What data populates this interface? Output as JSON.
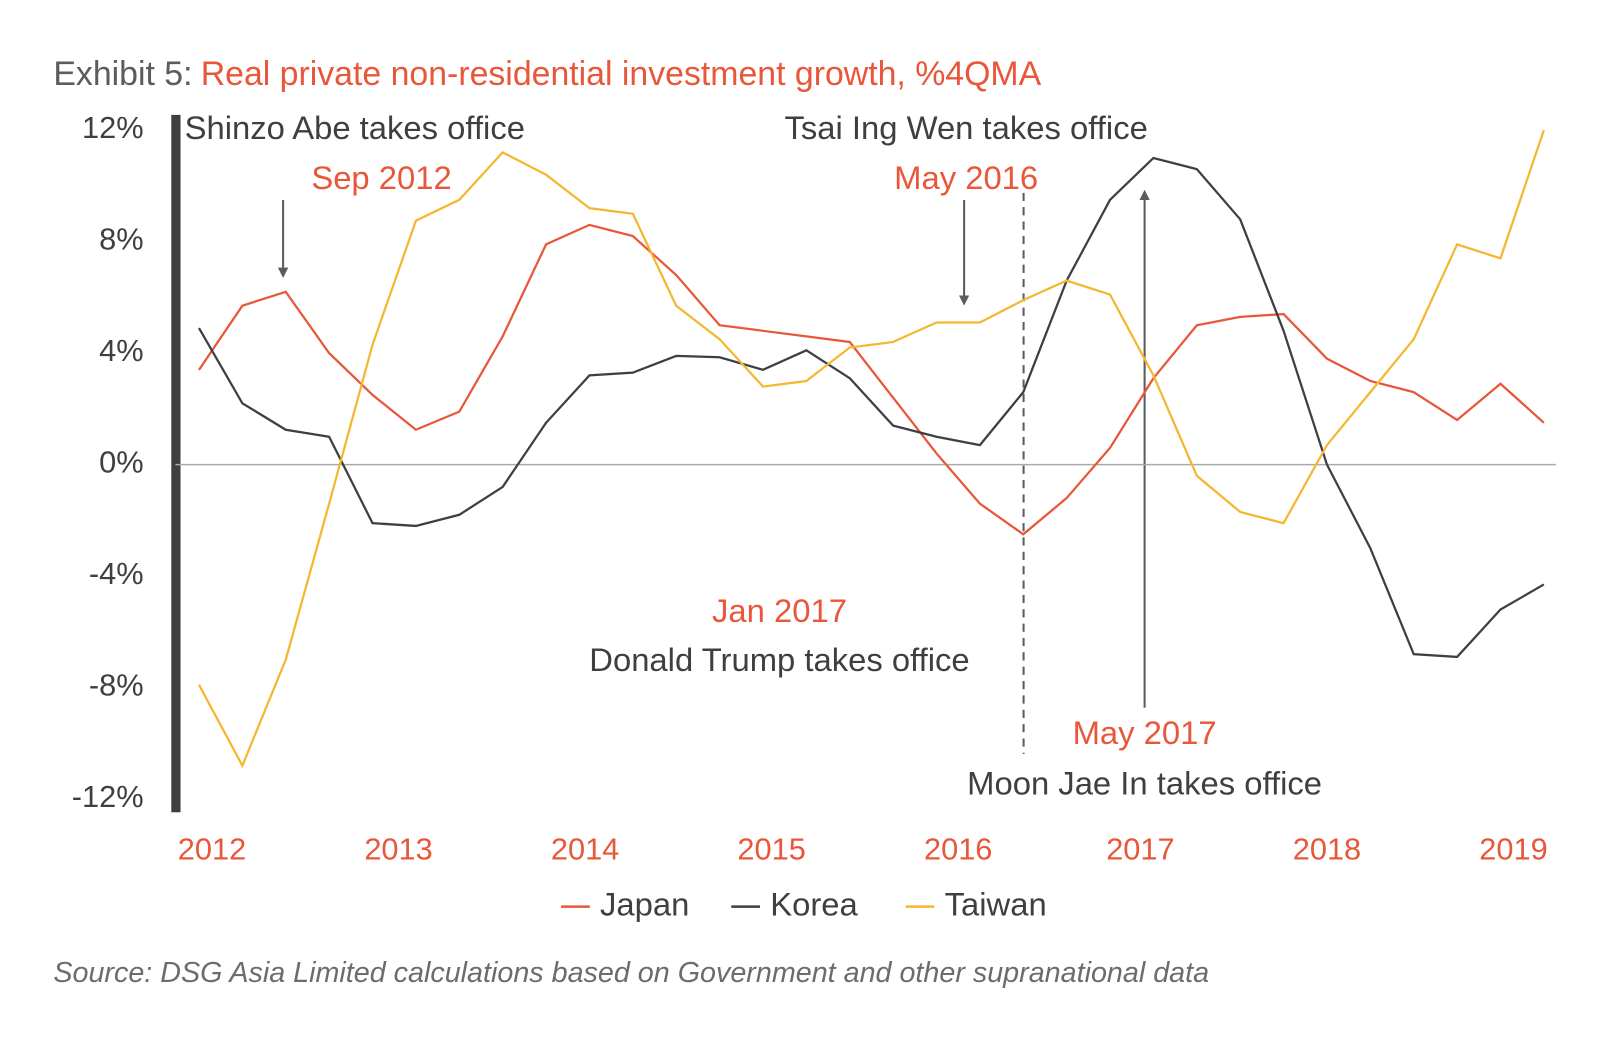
{
  "chart_data": {
    "type": "line",
    "title_prefix": "Exhibit 5:",
    "title": "Real private non-residential investment growth, %4QMA",
    "source": "Source: DSG Asia Limited calculations based on Government and other supranational data",
    "x": [
      0,
      1,
      2,
      3,
      4,
      5,
      6,
      7,
      8,
      9,
      10,
      11,
      12,
      13,
      14,
      15,
      16,
      17,
      18,
      19,
      20,
      21,
      22,
      23,
      24,
      25,
      26,
      27,
      28,
      29,
      30,
      31
    ],
    "xlim": [
      -0.55,
      31.55
    ],
    "xticks": [
      {
        "value": 0.3,
        "label": "2012"
      },
      {
        "value": 4.6,
        "label": "2013"
      },
      {
        "value": 8.9,
        "label": "2014"
      },
      {
        "value": 13.2,
        "label": "2015"
      },
      {
        "value": 17.5,
        "label": "2016"
      },
      {
        "value": 21.7,
        "label": "2017"
      },
      {
        "value": 26.0,
        "label": "2018"
      },
      {
        "value": 30.3,
        "label": "2019"
      }
    ],
    "ylim": [
      -12.4,
      12.4
    ],
    "yticks": [
      {
        "value": 12,
        "label": "12%"
      },
      {
        "value": 8,
        "label": "8%"
      },
      {
        "value": 4,
        "label": "4%"
      },
      {
        "value": 0,
        "label": "0%"
      },
      {
        "value": -4,
        "label": "-4%"
      },
      {
        "value": -8,
        "label": "-8%"
      },
      {
        "value": -12,
        "label": "-12%"
      }
    ],
    "zero_line": true,
    "series": [
      {
        "name": "Japan",
        "color": "#e8573a",
        "values": [
          3.4,
          5.7,
          6.2,
          4.0,
          2.5,
          1.25,
          1.9,
          4.6,
          7.9,
          8.6,
          8.2,
          6.8,
          5.0,
          4.8,
          4.6,
          4.4,
          2.4,
          0.4,
          -1.4,
          -2.5,
          -1.2,
          0.6,
          3.1,
          5.0,
          5.3,
          5.4,
          3.8,
          3.0,
          2.6,
          1.6,
          2.9,
          1.5
        ]
      },
      {
        "name": "Korea",
        "color": "#3d3f42",
        "values": [
          4.9,
          2.2,
          1.25,
          1.0,
          -2.1,
          -2.2,
          -1.8,
          -0.8,
          1.5,
          3.2,
          3.3,
          3.9,
          3.85,
          3.4,
          4.1,
          3.1,
          1.4,
          1.0,
          0.7,
          2.6,
          6.6,
          9.5,
          11.0,
          10.6,
          8.8,
          4.8,
          0.0,
          -3.0,
          -6.8,
          -6.9,
          -5.2,
          -4.3
        ]
      },
      {
        "name": "Taiwan",
        "color": "#f5b731",
        "values": [
          -7.9,
          -10.8,
          -7.0,
          -1.4,
          4.3,
          8.75,
          9.5,
          11.2,
          10.4,
          9.2,
          9.0,
          5.7,
          4.5,
          2.8,
          3.0,
          4.2,
          4.4,
          5.1,
          5.1,
          5.9,
          6.6,
          6.1,
          3.2,
          -0.4,
          -1.7,
          -2.1,
          0.7,
          2.6,
          4.5,
          7.9,
          7.4,
          12.0
        ]
      }
    ],
    "annotations": [
      "Shinzo Abe takes office",
      "Sep 2012",
      "Tsai Ing Wen takes office",
      "May 2016",
      "Jan 2017",
      "Donald Trump takes office",
      "May 2017",
      "Moon Jae In takes office"
    ]
  }
}
